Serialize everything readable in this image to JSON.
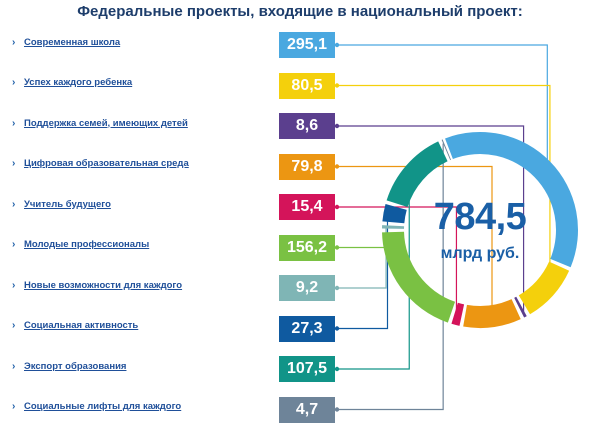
{
  "title": "Федеральные проекты, входящие в национальный проект:",
  "projects": [
    {
      "label": "Современная школа",
      "value": "295,1",
      "color": "#4aa8e0",
      "icon": "chevron-right-icon"
    },
    {
      "label": "Успех каждого ребенка",
      "value": "80,5",
      "color": "#f4d00c",
      "icon": "chevron-right-icon"
    },
    {
      "label": "Поддержка семей, имеющих детей",
      "value": "8,6",
      "color": "#5b3f8e",
      "icon": "chevron-right-icon"
    },
    {
      "label": "Цифровая образовательная среда",
      "value": "79,8",
      "color": "#ec9612",
      "icon": "chevron-right-icon"
    },
    {
      "label": "Учитель будущего",
      "value": "15,4",
      "color": "#d4145a",
      "icon": "chevron-right-icon"
    },
    {
      "label": "Молодые профессионалы",
      "value": "156,2",
      "color": "#7ac143",
      "icon": "chevron-right-icon"
    },
    {
      "label": "Новые возможности для каждого",
      "value": "9,2",
      "color": "#7fb5b5",
      "icon": "chevron-right-icon"
    },
    {
      "label": "Социальная активность",
      "value": "27,3",
      "color": "#0f5aa0",
      "icon": "chevron-right-icon"
    },
    {
      "label": "Экспорт образования",
      "value": "107,5",
      "color": "#119488",
      "icon": "chevron-right-icon"
    },
    {
      "label": "Социальные лифты для каждого",
      "value": "4,7",
      "color": "#6e8499",
      "icon": "chevron-right-icon"
    }
  ],
  "total": {
    "value": "784,5",
    "unit": "млрд руб."
  },
  "chart_data": {
    "type": "pie",
    "title": "Федеральные проекты, входящие в национальный проект:",
    "categories": [
      "Современная школа",
      "Успех каждого ребенка",
      "Поддержка семей, имеющих детей",
      "Цифровая образовательная среда",
      "Учитель будущего",
      "Молодые профессионалы",
      "Новые возможности для каждого",
      "Социальная активность",
      "Экспорт образования",
      "Социальные лифты для каждого"
    ],
    "values": [
      295.1,
      80.5,
      8.6,
      79.8,
      15.4,
      156.2,
      9.2,
      27.3,
      107.5,
      4.7
    ],
    "total": 784.5,
    "unit": "млрд руб."
  }
}
